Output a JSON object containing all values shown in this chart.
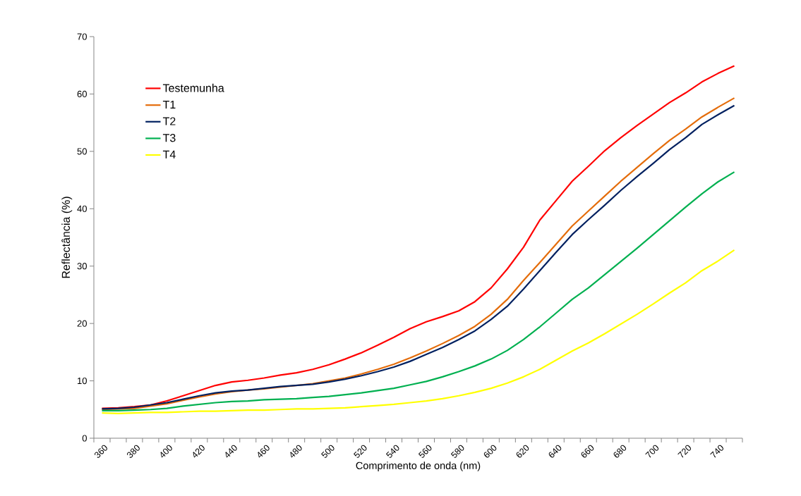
{
  "chart_data": {
    "type": "line",
    "xlabel": "Comprimento de onda (nm)",
    "ylabel": "Reflectância (%)",
    "categories": [
      "360",
      null,
      "380",
      null,
      "400",
      null,
      "420",
      null,
      "440",
      null,
      "460",
      null,
      "480",
      null,
      "500",
      null,
      "520",
      null,
      "540",
      null,
      "560",
      null,
      "580",
      null,
      "600",
      null,
      "620",
      null,
      "640",
      null,
      "660",
      null,
      "680",
      null,
      "700",
      null,
      "720",
      null,
      "740",
      null
    ],
    "ylim": [
      0,
      70
    ],
    "yticks": [
      0,
      10,
      20,
      30,
      40,
      50,
      60,
      70
    ],
    "legend": "top left",
    "marker": "none",
    "line_style": "solid",
    "grid": false,
    "series": [
      {
        "name": "Testemunha",
        "color": "#ff0000",
        "values": [
          5.2,
          5.3,
          5.5,
          5.8,
          6.5,
          7.4,
          8.3,
          9.2,
          9.8,
          10.1,
          10.5,
          11.0,
          11.4,
          12.0,
          12.8,
          13.8,
          14.9,
          16.2,
          17.6,
          19.1,
          20.3,
          21.2,
          22.2,
          23.8,
          26.2,
          29.5,
          33.3,
          38.0,
          41.4,
          44.8,
          47.4,
          50.1,
          52.4,
          54.5,
          56.5,
          58.5,
          60.2,
          62.1,
          63.6,
          64.9
        ]
      },
      {
        "name": "T1",
        "color": "#e46c0a",
        "values": [
          5.0,
          5.1,
          5.2,
          5.6,
          6.0,
          6.6,
          7.2,
          7.7,
          8.1,
          8.4,
          8.6,
          8.9,
          9.2,
          9.5,
          10.0,
          10.5,
          11.2,
          12.0,
          12.9,
          14.0,
          15.2,
          16.5,
          17.9,
          19.5,
          21.6,
          24.2,
          27.5,
          30.6,
          33.8,
          37.0,
          39.6,
          42.2,
          44.8,
          47.2,
          49.6,
          51.9,
          53.9,
          56.0,
          57.7,
          59.3
        ]
      },
      {
        "name": "T2",
        "color": "#002060",
        "values": [
          5.1,
          5.2,
          5.4,
          5.8,
          6.2,
          6.8,
          7.4,
          7.9,
          8.2,
          8.4,
          8.7,
          9.0,
          9.2,
          9.4,
          9.8,
          10.3,
          10.9,
          11.6,
          12.4,
          13.4,
          14.6,
          15.8,
          17.2,
          18.7,
          20.7,
          23.0,
          26.0,
          29.2,
          32.4,
          35.5,
          38.1,
          40.6,
          43.2,
          45.6,
          47.9,
          50.3,
          52.4,
          54.7,
          56.4,
          58.0
        ]
      },
      {
        "name": "T3",
        "color": "#00b050",
        "values": [
          4.8,
          4.8,
          4.9,
          5.0,
          5.2,
          5.6,
          5.9,
          6.2,
          6.4,
          6.5,
          6.7,
          6.8,
          6.9,
          7.1,
          7.3,
          7.6,
          7.9,
          8.3,
          8.7,
          9.3,
          9.9,
          10.7,
          11.6,
          12.6,
          13.8,
          15.3,
          17.2,
          19.4,
          21.8,
          24.2,
          26.2,
          28.5,
          30.8,
          33.1,
          35.5,
          37.9,
          40.3,
          42.6,
          44.7,
          46.4
        ]
      },
      {
        "name": "T4",
        "color": "#ffff00",
        "values": [
          4.4,
          4.3,
          4.4,
          4.5,
          4.5,
          4.6,
          4.7,
          4.7,
          4.8,
          4.9,
          4.9,
          5.0,
          5.1,
          5.1,
          5.2,
          5.3,
          5.5,
          5.7,
          5.9,
          6.2,
          6.5,
          6.9,
          7.4,
          8.0,
          8.7,
          9.6,
          10.7,
          12.0,
          13.6,
          15.2,
          16.6,
          18.2,
          19.9,
          21.6,
          23.4,
          25.3,
          27.1,
          29.2,
          30.9,
          32.8
        ]
      }
    ]
  }
}
